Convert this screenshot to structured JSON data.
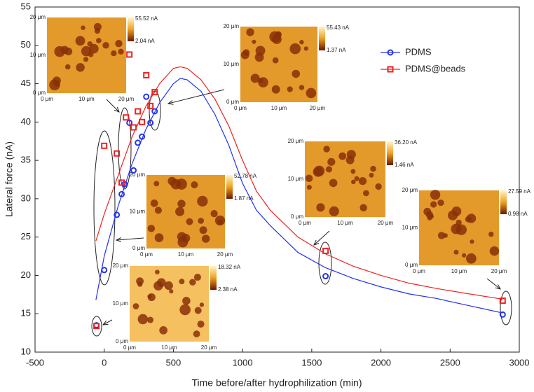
{
  "chart_data": {
    "type": "scatter",
    "x_label": "Time before/after hydrophilization (min)",
    "y_label": "Lateral force (nA)",
    "xlim": [
      -500,
      3000
    ],
    "xticks": [
      -500,
      0,
      500,
      1000,
      1500,
      2000,
      2500,
      3000
    ],
    "ylim": [
      10,
      55
    ],
    "yticks": [
      10,
      15,
      20,
      25,
      30,
      35,
      40,
      45,
      50,
      55
    ],
    "series": [
      {
        "name": "PDMS",
        "color": "#2233ee",
        "x": [
          -56,
          0,
          91,
          126,
          147,
          182,
          212,
          243,
          273,
          304,
          334,
          365,
          1600,
          2880
        ],
        "values": [
          13.5,
          20.7,
          27.9,
          30.6,
          31.9,
          39.9,
          33.7,
          37.3,
          38.1,
          43.3,
          39.9,
          41.4,
          19.9,
          14.9
        ],
        "fit_x": [
          -60,
          0,
          100,
          200,
          300,
          400,
          500,
          550,
          600,
          700,
          800,
          900,
          1000,
          1100,
          1200,
          1400,
          1600,
          1800,
          2000,
          2200,
          2400,
          2600,
          2880
        ],
        "fit_values": [
          16.8,
          22.5,
          29,
          34.5,
          39,
          42.5,
          45,
          45.7,
          45.5,
          44,
          41,
          37,
          32,
          28.5,
          26.5,
          23,
          21,
          19.6,
          18.5,
          17.6,
          17,
          16.2,
          15.1
        ]
      },
      {
        "name": "PDMS@beads",
        "color": "#ee2222",
        "x": [
          -56,
          0,
          91,
          126,
          157,
          182,
          212,
          243,
          273,
          304,
          334,
          365,
          1600,
          2880
        ],
        "values": [
          13.4,
          36.9,
          35.9,
          32.1,
          40.6,
          48.8,
          39.3,
          41.4,
          40.0,
          46.1,
          42.1,
          43.9,
          23.2,
          16.7
        ],
        "fit_x": [
          -60,
          0,
          100,
          200,
          300,
          400,
          500,
          550,
          600,
          700,
          800,
          900,
          1000,
          1100,
          1200,
          1400,
          1600,
          1800,
          2000,
          2200,
          2400,
          2600,
          2880
        ],
        "fit_values": [
          24.5,
          28,
          33,
          38,
          42,
          45,
          47,
          47.2,
          47,
          45.5,
          43,
          39.5,
          35,
          31,
          28.5,
          25,
          22.8,
          21.2,
          20,
          19,
          18.3,
          17.7,
          16.9
        ]
      }
    ],
    "inset_axis_labels": [
      "0 μm",
      "10 μm",
      "20 μm"
    ],
    "insets": [
      {
        "max": "55.52 nA",
        "min": "2.04 nA"
      },
      {
        "max": "55.43 nA",
        "min": "1.37 nA"
      },
      {
        "max": "52.78 nA",
        "min": "1.87 nA"
      },
      {
        "max": "18.32 nA",
        "min": "2.38 nA"
      },
      {
        "max": "36.20 nA",
        "min": "1.46 nA"
      },
      {
        "max": "27.59 nA",
        "min": "0.98 nA"
      }
    ]
  }
}
